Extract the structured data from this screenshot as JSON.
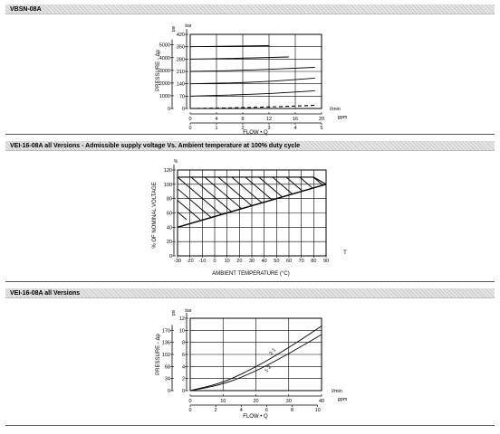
{
  "sections": [
    {
      "title": "VBSN-08A"
    },
    {
      "title": "VEI-16-08A all Versions - Admissible supply voltage Vs. Ambient temperature at 100% duty cycle"
    },
    {
      "title": "VEI-16-08A all Versions"
    }
  ],
  "chart_data": [
    {
      "type": "line",
      "ylabel": "PRESSURE - Δp",
      "xlabel": "FLOW • Q",
      "y_units": [
        "psi",
        "bar"
      ],
      "x_units": [
        "l/min",
        "gpm"
      ],
      "yticks_psi": [
        "5000",
        "4000",
        "3000",
        "2000",
        "1000",
        "0"
      ],
      "yticks_bar": [
        "420",
        "350",
        "280",
        "210",
        "140",
        "70",
        "0"
      ],
      "xticks_lmin": [
        "0",
        "4",
        "8",
        "12",
        "16",
        "20"
      ],
      "xticks_gpm": [
        "0",
        "1",
        "2",
        "3",
        "4",
        "5"
      ],
      "xlim": [
        0,
        20
      ],
      "ylim": [
        0,
        420
      ],
      "grid": true,
      "series": [
        {
          "style": "solid",
          "x": [
            0,
            12
          ],
          "y": [
            350,
            356
          ]
        },
        {
          "style": "solid",
          "x": [
            0,
            6,
            15
          ],
          "y": [
            280,
            283,
            292
          ]
        },
        {
          "style": "solid",
          "x": [
            0,
            8,
            19
          ],
          "y": [
            210,
            216,
            233
          ]
        },
        {
          "style": "solid",
          "x": [
            0,
            10,
            19
          ],
          "y": [
            140,
            148,
            172
          ]
        },
        {
          "style": "solid",
          "x": [
            0,
            10,
            19
          ],
          "y": [
            70,
            80,
            100
          ]
        },
        {
          "style": "dashed",
          "x": [
            0,
            10,
            19
          ],
          "y": [
            0,
            6,
            18
          ]
        }
      ]
    },
    {
      "type": "area",
      "ylabel": "% OF NOMINAL VOLTAGE",
      "xlabel": "AMBIENT TEMPERATURE (°C)",
      "y_unit": "%",
      "x_unit": "T",
      "yticks": [
        "120",
        "100",
        "80",
        "60",
        "40",
        "20",
        "0"
      ],
      "xticks": [
        "-30",
        "-20",
        "-10",
        "0",
        "10",
        "20",
        "30",
        "40",
        "50",
        "60",
        "70",
        "80",
        "90"
      ],
      "xlim": [
        -30,
        90
      ],
      "ylim": [
        0,
        120
      ],
      "grid": true,
      "admissible_region": {
        "x": [
          -30,
          -30,
          80,
          90
        ],
        "y": [
          40,
          110,
          110,
          100
        ]
      },
      "boundary": {
        "x": [
          -30,
          90
        ],
        "y": [
          40,
          100
        ]
      }
    },
    {
      "type": "line",
      "ylabel": "PRESSURE - Δp",
      "xlabel": "FLOW • Q",
      "y_units": [
        "psi",
        "bar"
      ],
      "x_units": [
        "l/min",
        "gpm"
      ],
      "yticks_psi": [
        "170",
        "136",
        "102",
        "68",
        "34",
        "0"
      ],
      "yticks_bar": [
        "12",
        "10",
        "8",
        "6",
        "4",
        "2",
        "0"
      ],
      "xticks_lmin": [
        "0",
        "10",
        "20",
        "30",
        "40"
      ],
      "xticks_gpm": [
        "0",
        "2",
        "4",
        "6",
        "8",
        "10"
      ],
      "xlim": [
        0,
        40
      ],
      "ylim": [
        0,
        12
      ],
      "grid": true,
      "series": [
        {
          "name": "2-1",
          "x": [
            0,
            10,
            20,
            30,
            40
          ],
          "y": [
            0,
            1.3,
            3.9,
            7.1,
            10.7
          ]
        },
        {
          "name": "1-2",
          "x": [
            0,
            10,
            20,
            30,
            40
          ],
          "y": [
            0,
            1.0,
            3.2,
            6.1,
            9.3
          ]
        }
      ]
    }
  ]
}
